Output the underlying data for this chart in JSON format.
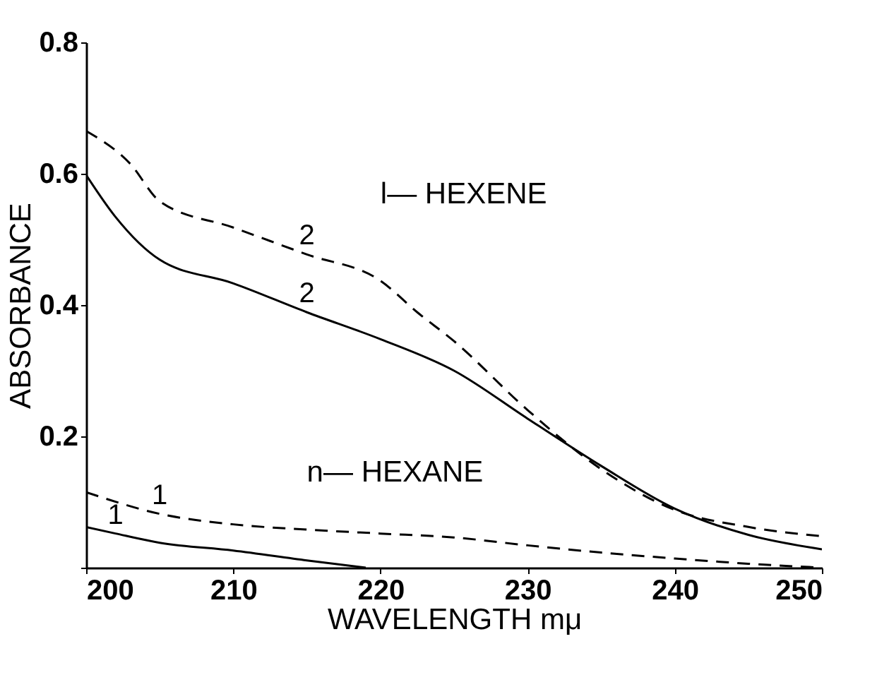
{
  "chart_data": {
    "type": "line",
    "xlabel": "WAVELENGTH mμ",
    "ylabel": "ABSORBANCE",
    "xlim": [
      200,
      250
    ],
    "xticks": [
      200,
      210,
      220,
      230,
      240,
      250
    ],
    "ylim": [
      0,
      0.8
    ],
    "yticks": [
      {
        "value": 0,
        "label": null
      },
      0.2,
      0.4,
      0.6,
      0.8
    ],
    "grid": false,
    "marker": "none",
    "series": [
      {
        "color": "#000000",
        "line_style": "dashed",
        "x": [
          200,
          203,
          205,
          210,
          215,
          220,
          222.5,
          225,
          230,
          235,
          240,
          245,
          250
        ],
        "values": [
          0.665,
          0.615,
          0.558,
          0.518,
          0.477,
          0.437,
          0.389,
          0.345,
          0.24,
          0.15,
          0.088,
          0.062,
          0.048
        ]
      },
      {
        "color": "#000000",
        "line_style": "solid",
        "x": [
          200,
          202,
          205,
          210,
          215,
          220,
          225,
          230,
          235,
          240,
          245,
          250
        ],
        "values": [
          0.598,
          0.534,
          0.469,
          0.433,
          0.389,
          0.348,
          0.3,
          0.227,
          0.155,
          0.09,
          0.05,
          0.028
        ]
      },
      {
        "color": "#000000",
        "line_style": "dashed",
        "x": [
          200,
          205,
          210,
          215,
          220,
          225,
          230,
          235,
          240,
          245,
          250
        ],
        "values": [
          0.115,
          0.082,
          0.066,
          0.058,
          0.052,
          0.046,
          0.034,
          0.023,
          0.014,
          0.006,
          0
        ]
      },
      {
        "color": "#000000",
        "line_style": "solid",
        "x": [
          200,
          202,
          205,
          210,
          215,
          219
        ],
        "values": [
          0.062,
          0.052,
          0.038,
          0.026,
          0.011,
          0
        ]
      }
    ],
    "annotations": [
      "l— HEXENE",
      "n— HEXANE",
      {
        "text": "2",
        "x": 215,
        "y": 0.477
      },
      {
        "text": "2",
        "x": 215,
        "y": 0.389
      },
      {
        "text": "1",
        "x": 205,
        "y": 0.082
      },
      {
        "text": "1",
        "x": 202,
        "y": 0.052
      }
    ]
  }
}
